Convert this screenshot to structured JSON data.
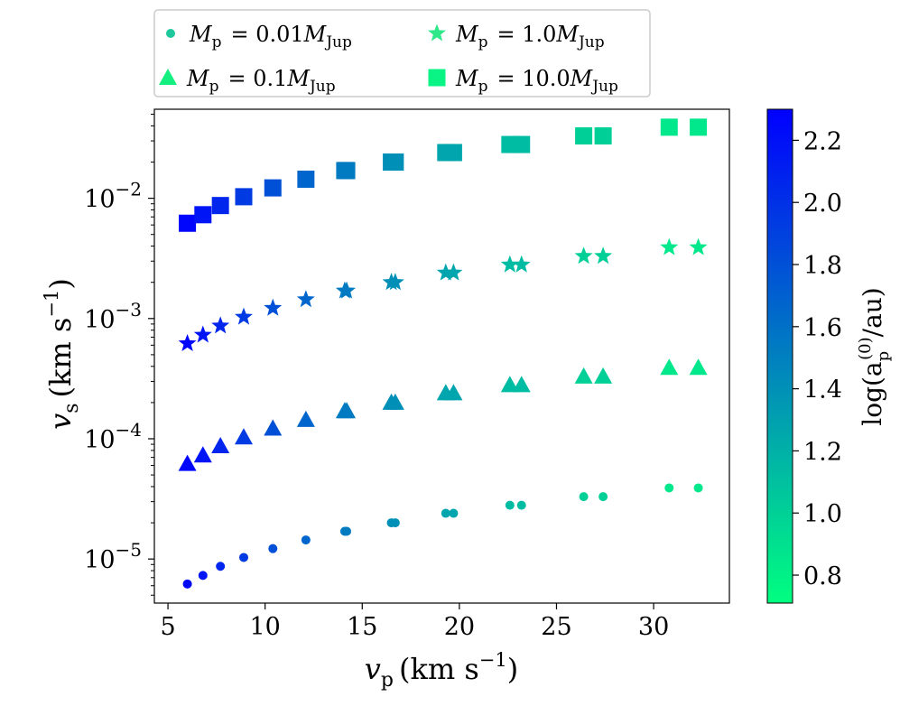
{
  "chart_data": {
    "type": "scatter",
    "x_axis": {
      "label_main": "v",
      "label_sub": "p",
      "label_unit": "(km s",
      "label_unit_exp": "−1",
      "label_unit_close": ")",
      "range": [
        4.3,
        33.9
      ],
      "ticks": [
        5,
        10,
        15,
        20,
        25,
        30
      ],
      "tick_labels": [
        "5",
        "10",
        "15",
        "20",
        "25",
        "30"
      ],
      "scale": "linear"
    },
    "y_axis": {
      "label_main": "v",
      "label_sub": "s",
      "label_unit": "(km s",
      "label_unit_exp": "−1",
      "label_unit_close": ")",
      "range": [
        4.3e-06,
        0.055
      ],
      "scale": "log",
      "ticks": [
        1e-05,
        0.0001,
        0.001,
        0.01
      ],
      "tick_labels": [
        {
          "base": "10",
          "exp": "−5"
        },
        {
          "base": "10",
          "exp": "−4"
        },
        {
          "base": "10",
          "exp": "−3"
        },
        {
          "base": "10",
          "exp": "−2"
        }
      ]
    },
    "colorbar": {
      "label": "log(a",
      "label_sub": "p",
      "label_sup": "(0)",
      "label_tail": "/au)",
      "range": [
        0.71,
        2.3
      ],
      "ticks": [
        0.8,
        1.0,
        1.2,
        1.4,
        1.6,
        1.8,
        2.0,
        2.2
      ],
      "tick_labels": [
        "0.8",
        "1.0",
        "1.2",
        "1.4",
        "1.6",
        "1.8",
        "2.0",
        "2.2"
      ],
      "color_low": "#00ff80",
      "color_high": "#0000ff"
    },
    "legend": {
      "placement": "top",
      "entries": [
        {
          "marker": "circle",
          "prefix": "M",
          "prefix_sub": "p",
          "eq": "= 0.01",
          "unit": "M",
          "unit_sub": "Jup"
        },
        {
          "marker": "star",
          "prefix": "M",
          "prefix_sub": "p",
          "eq": "= 1.0",
          "unit": "M",
          "unit_sub": "Jup"
        },
        {
          "marker": "triangle",
          "prefix": "M",
          "prefix_sub": "p",
          "eq": "= 0.1",
          "unit": "M",
          "unit_sub": "Jup"
        },
        {
          "marker": "square",
          "prefix": "M",
          "prefix_sub": "p",
          "eq": "= 10.0",
          "unit": "M",
          "unit_sub": "Jup"
        }
      ]
    },
    "x": [
      6.0,
      6.8,
      7.7,
      8.9,
      10.4,
      12.1,
      14.1,
      14.2,
      16.5,
      16.7,
      19.3,
      19.7,
      22.6,
      23.2,
      26.4,
      27.4,
      30.8,
      32.3
    ],
    "log_a": [
      2.26,
      2.17,
      2.07,
      1.94,
      1.8,
      1.67,
      1.53,
      1.53,
      1.4,
      1.4,
      1.27,
      1.27,
      1.13,
      1.13,
      1.0,
      1.0,
      0.86,
      0.86
    ],
    "series": [
      {
        "name": "M_p = 0.01 M_Jup",
        "marker": "circle",
        "y": [
          6.2e-06,
          7.3e-06,
          8.7e-06,
          1.03e-05,
          1.22e-05,
          1.44e-05,
          1.7e-05,
          1.7e-05,
          2e-05,
          2e-05,
          2.4e-05,
          2.4e-05,
          2.8e-05,
          2.8e-05,
          3.3e-05,
          3.3e-05,
          3.9e-05,
          3.9e-05
        ]
      },
      {
        "name": "M_p = 0.1 M_Jup",
        "marker": "triangle",
        "y": [
          6.2e-05,
          7.3e-05,
          8.7e-05,
          0.000103,
          0.000122,
          0.000144,
          0.00017,
          0.00017,
          0.0002,
          0.0002,
          0.00024,
          0.00024,
          0.00028,
          0.00028,
          0.00033,
          0.00033,
          0.00039,
          0.00039
        ]
      },
      {
        "name": "M_p = 1.0 M_Jup",
        "marker": "star",
        "y": [
          0.00062,
          0.00073,
          0.00087,
          0.00103,
          0.00122,
          0.00144,
          0.0017,
          0.0017,
          0.002,
          0.002,
          0.0024,
          0.0024,
          0.0028,
          0.0028,
          0.0033,
          0.0033,
          0.0039,
          0.0039
        ]
      },
      {
        "name": "M_p = 10.0 M_Jup",
        "marker": "square",
        "y": [
          0.0062,
          0.0073,
          0.0087,
          0.0103,
          0.0122,
          0.0144,
          0.017,
          0.017,
          0.02,
          0.02,
          0.024,
          0.024,
          0.028,
          0.028,
          0.033,
          0.033,
          0.039,
          0.039
        ]
      }
    ]
  }
}
